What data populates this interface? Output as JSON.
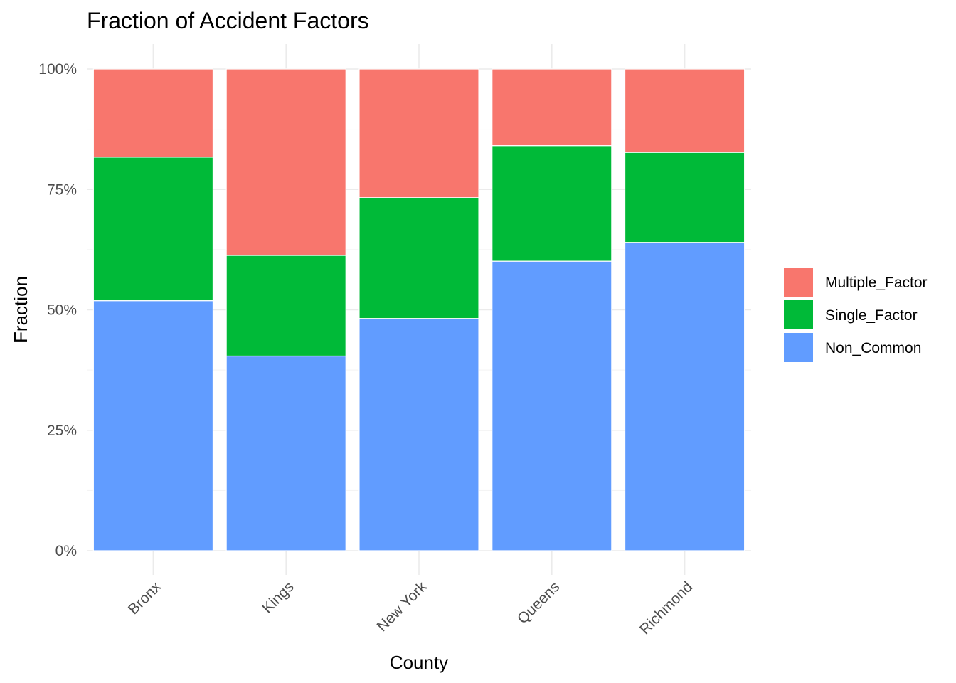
{
  "chart_data": {
    "type": "bar",
    "stacked": true,
    "title": "Fraction of Accident Factors",
    "xlabel": "County",
    "ylabel": "Fraction",
    "categories": [
      "Bronx",
      "Kings",
      "New York",
      "Queens",
      "Richmond"
    ],
    "series": [
      {
        "name": "Non_Common",
        "color": "#619CFF",
        "values": [
          0.519,
          0.404,
          0.482,
          0.601,
          0.64
        ]
      },
      {
        "name": "Single_Factor",
        "color": "#00BA38",
        "values": [
          0.298,
          0.209,
          0.251,
          0.24,
          0.187
        ]
      },
      {
        "name": "Multiple_Factor",
        "color": "#F8766D",
        "values": [
          0.183,
          0.387,
          0.267,
          0.159,
          0.173
        ]
      }
    ],
    "stack_order": [
      "Non_Common",
      "Single_Factor",
      "Multiple_Factor"
    ],
    "legend_order": [
      "Multiple_Factor",
      "Single_Factor",
      "Non_Common"
    ],
    "legend_position": "right",
    "ylim": [
      0,
      1
    ],
    "yticks": [
      0,
      0.25,
      0.5,
      0.75,
      1
    ],
    "ytick_labels": [
      "0%",
      "25%",
      "50%",
      "75%",
      "100%"
    ],
    "xtick_rotation_deg": 45,
    "grid": true
  }
}
